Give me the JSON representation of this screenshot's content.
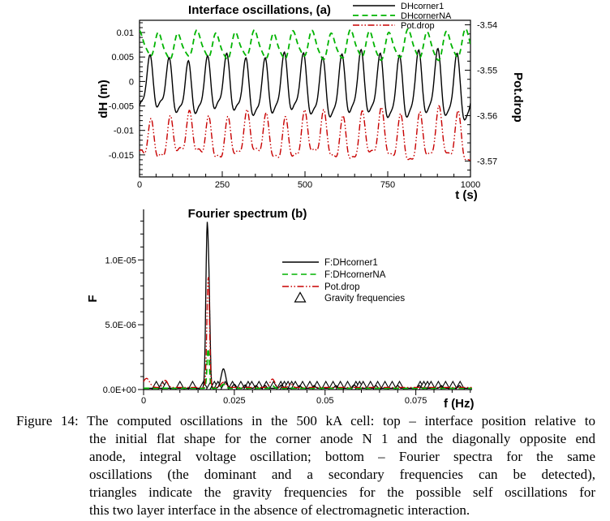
{
  "figure": {
    "caption": {
      "lines": [
        "Figure 14: The computed oscillations in the 500 kA cell: top – interface position relative to",
        "the initial flat shape for the corner anode N 1 and the diagonally opposite end",
        "anode, integral voltage oscillation; bottom – Fourier spectra for the same",
        "oscillations (the dominant and a secondary frequencies can be detected),",
        "triangles indicate the gravity frequencies for the possible self oscillations for",
        "this two layer interface in the absence of electromagnetic interaction."
      ]
    }
  },
  "chart_data": [
    {
      "id": "interface-oscillations",
      "type": "line",
      "title": "Interface oscillations,  (a)",
      "xlabel": "t (s)",
      "ylabel_left": "dH (m)",
      "ylabel_right": "Pot.drop",
      "xlim": [
        0,
        1000
      ],
      "xticks": [
        0,
        250,
        500,
        750,
        1000
      ],
      "x_minor_step": 50,
      "ylim_left": [
        -0.0195,
        0.0125
      ],
      "yticks_left": [
        0.01,
        0.005,
        0,
        -0.005,
        -0.01,
        -0.015
      ],
      "y_minor_step_left": 0.001,
      "ylim_right": [
        -3.5735,
        -3.539
      ],
      "yticks_right": [
        -3.54,
        -3.55,
        -3.56,
        -3.57
      ],
      "y_minor_step_right": 0.002,
      "legend_position": "top-right",
      "grid": false,
      "series": [
        {
          "name": "DHcorner1",
          "color": "#000000",
          "style": "solid",
          "axis": "left",
          "model": {
            "mean": -0.0016,
            "components": [
              [
                0.0048,
                58,
                -1.7,
                0.35
              ],
              [
                0.0016,
                29,
                0.8,
                0
              ],
              [
                0.0007,
                210,
                0.4,
                0
              ]
            ]
          },
          "observed": {
            "period_s": 58,
            "min": -0.01,
            "max": 0.0065
          }
        },
        {
          "name": "DHcornerNA",
          "color": "#00b400",
          "style": "dashed",
          "axis": "left",
          "model": {
            "mean": 0.0073,
            "components": [
              [
                0.0024,
                58,
                1.44,
                0.15
              ],
              [
                0.0005,
                29,
                2.3,
                0
              ],
              [
                0.0004,
                160,
                1.0,
                0
              ]
            ]
          },
          "observed": {
            "period_s": 58,
            "min": 0.004,
            "max": 0.0105
          }
        },
        {
          "name": "Pot.drop",
          "color": "#c80000",
          "style": "dashdotdot",
          "axis": "right",
          "model": {
            "mean": -3.5653,
            "components": [
              [
                0.0038,
                58,
                -2.2,
                0.35
              ],
              [
                0.0016,
                29,
                0.3,
                0
              ],
              [
                0.0009,
                190,
                3.0,
                0
              ]
            ]
          },
          "observed": {
            "period_s": 58,
            "min": -3.572,
            "max": -3.557
          }
        }
      ]
    },
    {
      "id": "fourier-spectrum",
      "type": "line",
      "title": "Fourier spectrum (b)",
      "xlabel": "f (Hz)",
      "ylabel": "F",
      "xlim": [
        0,
        0.0905
      ],
      "xticks": [
        0,
        0.025,
        0.05,
        0.075
      ],
      "xtick_labels": [
        "0",
        "0.025",
        "0.05",
        "0.075"
      ],
      "x_minor_step": 0.005,
      "ylim": [
        0,
        1.39e-05
      ],
      "yticks": [
        0,
        5e-06,
        1e-05
      ],
      "ytick_labels": [
        "0.0E+00",
        "5.0E-06",
        "1.0E-05"
      ],
      "y_minor_step": 1e-06,
      "legend_position": "center-right",
      "grid": false,
      "dominant_frequency_hz": 0.0175,
      "secondary_frequency_hz": 0.022,
      "series": [
        {
          "name": "F:DHcorner1",
          "color": "#000000",
          "style": "solid",
          "floor": 1e-07,
          "peaks": [
            [
              0.0175,
              1.22e-05,
              0.0005
            ],
            [
              0.0181,
              5e-06,
              0.0004
            ],
            [
              0.022,
              1.5e-06,
              0.0009
            ],
            [
              0.025,
              3e-07,
              0.0006
            ],
            [
              0.028,
              2.5e-07,
              0.0005
            ],
            [
              0.031,
              2e-07,
              0.0005
            ],
            [
              0.0335,
              2e-07,
              0.0005
            ],
            [
              0.038,
              2.5e-07,
              0.0006
            ],
            [
              0.043,
              2e-07,
              0.0005
            ],
            [
              0.047,
              2e-07,
              0.0005
            ],
            [
              0.053,
              2e-07,
              0.0005
            ],
            [
              0.058,
              2.5e-07,
              0.0006
            ],
            [
              0.064,
              2e-07,
              0.0005
            ],
            [
              0.07,
              2e-07,
              0.0005
            ],
            [
              0.076,
              2e-07,
              0.0005
            ],
            [
              0.082,
              2e-07,
              0.0005
            ],
            [
              0.087,
              2e-07,
              0.0005
            ]
          ]
        },
        {
          "name": "F:DHcornerNA",
          "color": "#00b400",
          "style": "dashed",
          "floor": 1e-07,
          "peaks": [
            [
              0.0178,
              3.1e-06,
              0.00045
            ],
            [
              0.022,
              3e-07,
              0.0008
            ],
            [
              0.0355,
              2e-07,
              0.0006
            ]
          ]
        },
        {
          "name": "Pot.drop",
          "color": "#c80000",
          "style": "dashdotdot",
          "floor": 1.6e-07,
          "peaks": [
            [
              0.0008,
              7e-07,
              0.0012
            ],
            [
              0.006,
              5.5e-07,
              0.0009
            ],
            [
              0.0178,
              8.6e-06,
              0.0005
            ],
            [
              0.022,
              4e-07,
              0.001
            ],
            [
              0.0355,
              6.5e-07,
              0.0009
            ],
            [
              0.0405,
              3e-07,
              0.0007
            ]
          ]
        }
      ],
      "markers": {
        "name": "Gravity frequencies",
        "symbol": "triangle",
        "frequencies": [
          0.0035,
          0.0052,
          0.0063,
          0.01,
          0.0135,
          0.0165,
          0.0185,
          0.0195,
          0.0205,
          0.0225,
          0.0245,
          0.0268,
          0.0288,
          0.0298,
          0.0318,
          0.0338,
          0.0358,
          0.0378,
          0.0388,
          0.0398,
          0.0408,
          0.0418,
          0.0438,
          0.0458,
          0.0478,
          0.0502,
          0.0522,
          0.0542,
          0.0562,
          0.0585,
          0.0595,
          0.0605,
          0.0625,
          0.0645,
          0.0665,
          0.0685,
          0.0705,
          0.0762,
          0.0772,
          0.0782,
          0.0792,
          0.0812,
          0.0832,
          0.0852,
          0.0872
        ]
      }
    }
  ]
}
